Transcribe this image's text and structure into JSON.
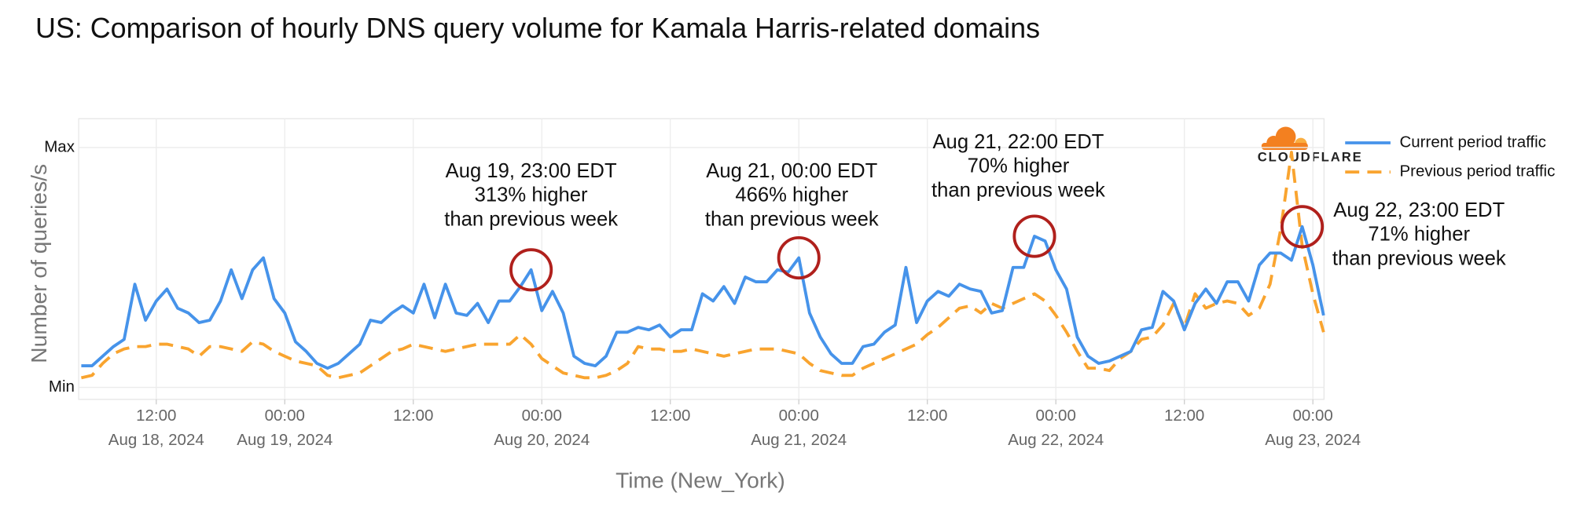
{
  "chart_data": {
    "type": "line",
    "title": "US: Comparison of hourly DNS query volume for Kamala Harris-related domains",
    "y_label": "Number of queries/s",
    "x_label": "Time (New_York)",
    "logo_text": "CLOUDFLARE",
    "grid": true,
    "legend": "right",
    "ylim": [
      -5,
      112
    ],
    "yticks": [
      {
        "value": 0,
        "label": "Min"
      },
      {
        "value": 100,
        "label": "Max"
      }
    ],
    "xlim": [
      "2024-08-18T05:00",
      "2024-08-23T01:00"
    ],
    "xticks": [
      {
        "value": "2024-08-18T12:00",
        "label": "12:00",
        "date": "Aug 18, 2024"
      },
      {
        "value": "2024-08-19T00:00",
        "label": "00:00",
        "date": "Aug 19, 2024"
      },
      {
        "value": "2024-08-19T12:00",
        "label": "12:00"
      },
      {
        "value": "2024-08-20T00:00",
        "label": "00:00",
        "date": "Aug 20, 2024"
      },
      {
        "value": "2024-08-20T12:00",
        "label": "12:00"
      },
      {
        "value": "2024-08-21T00:00",
        "label": "00:00",
        "date": "Aug 21, 2024"
      },
      {
        "value": "2024-08-21T12:00",
        "label": "12:00"
      },
      {
        "value": "2024-08-22T00:00",
        "label": "00:00",
        "date": "Aug 22, 2024"
      },
      {
        "value": "2024-08-22T12:00",
        "label": "12:00"
      },
      {
        "value": "2024-08-23T00:00",
        "label": "00:00",
        "date": "Aug 23, 2024"
      }
    ],
    "x": [
      "2024-08-18T05:00",
      "2024-08-18T06:00",
      "2024-08-18T07:00",
      "2024-08-18T08:00",
      "2024-08-18T09:00",
      "2024-08-18T10:00",
      "2024-08-18T11:00",
      "2024-08-18T12:00",
      "2024-08-18T13:00",
      "2024-08-18T14:00",
      "2024-08-18T15:00",
      "2024-08-18T16:00",
      "2024-08-18T17:00",
      "2024-08-18T18:00",
      "2024-08-18T19:00",
      "2024-08-18T20:00",
      "2024-08-18T21:00",
      "2024-08-18T22:00",
      "2024-08-18T23:00",
      "2024-08-19T00:00",
      "2024-08-19T01:00",
      "2024-08-19T02:00",
      "2024-08-19T03:00",
      "2024-08-19T04:00",
      "2024-08-19T05:00",
      "2024-08-19T06:00",
      "2024-08-19T07:00",
      "2024-08-19T08:00",
      "2024-08-19T09:00",
      "2024-08-19T10:00",
      "2024-08-19T11:00",
      "2024-08-19T12:00",
      "2024-08-19T13:00",
      "2024-08-19T14:00",
      "2024-08-19T15:00",
      "2024-08-19T16:00",
      "2024-08-19T17:00",
      "2024-08-19T18:00",
      "2024-08-19T19:00",
      "2024-08-19T20:00",
      "2024-08-19T21:00",
      "2024-08-19T22:00",
      "2024-08-19T23:00",
      "2024-08-20T00:00",
      "2024-08-20T01:00",
      "2024-08-20T02:00",
      "2024-08-20T03:00",
      "2024-08-20T04:00",
      "2024-08-20T05:00",
      "2024-08-20T06:00",
      "2024-08-20T07:00",
      "2024-08-20T08:00",
      "2024-08-20T09:00",
      "2024-08-20T10:00",
      "2024-08-20T11:00",
      "2024-08-20T12:00",
      "2024-08-20T13:00",
      "2024-08-20T14:00",
      "2024-08-20T15:00",
      "2024-08-20T16:00",
      "2024-08-20T17:00",
      "2024-08-20T18:00",
      "2024-08-20T19:00",
      "2024-08-20T20:00",
      "2024-08-20T21:00",
      "2024-08-20T22:00",
      "2024-08-20T23:00",
      "2024-08-21T00:00",
      "2024-08-21T01:00",
      "2024-08-21T02:00",
      "2024-08-21T03:00",
      "2024-08-21T04:00",
      "2024-08-21T05:00",
      "2024-08-21T06:00",
      "2024-08-21T07:00",
      "2024-08-21T08:00",
      "2024-08-21T09:00",
      "2024-08-21T10:00",
      "2024-08-21T11:00",
      "2024-08-21T12:00",
      "2024-08-21T13:00",
      "2024-08-21T14:00",
      "2024-08-21T15:00",
      "2024-08-21T16:00",
      "2024-08-21T17:00",
      "2024-08-21T18:00",
      "2024-08-21T19:00",
      "2024-08-21T20:00",
      "2024-08-21T21:00",
      "2024-08-21T22:00",
      "2024-08-21T23:00",
      "2024-08-22T00:00",
      "2024-08-22T01:00",
      "2024-08-22T02:00",
      "2024-08-22T03:00",
      "2024-08-22T04:00",
      "2024-08-22T05:00",
      "2024-08-22T06:00",
      "2024-08-22T07:00",
      "2024-08-22T08:00",
      "2024-08-22T09:00",
      "2024-08-22T10:00",
      "2024-08-22T11:00",
      "2024-08-22T12:00",
      "2024-08-22T13:00",
      "2024-08-22T14:00",
      "2024-08-22T15:00",
      "2024-08-22T16:00",
      "2024-08-22T17:00",
      "2024-08-22T18:00",
      "2024-08-22T19:00",
      "2024-08-22T20:00",
      "2024-08-22T21:00",
      "2024-08-22T22:00",
      "2024-08-22T23:00",
      "2024-08-23T00:00",
      "2024-08-23T01:00"
    ],
    "series": [
      {
        "name": "Current period traffic",
        "color": "#4693ea",
        "dash": false,
        "values": [
          9,
          9,
          13,
          17,
          20,
          43,
          28,
          36,
          41,
          33,
          31,
          27,
          28,
          36,
          49,
          37,
          49,
          54,
          37,
          31,
          19,
          15,
          10,
          8,
          10,
          14,
          18,
          28,
          27,
          31,
          34,
          31,
          43,
          29,
          43,
          31,
          30,
          35,
          27,
          36,
          36,
          42,
          49,
          32,
          40,
          31,
          13,
          10,
          9,
          13,
          23,
          23,
          25,
          24,
          26,
          21,
          24,
          24,
          39,
          36,
          42,
          35,
          46,
          44,
          44,
          49,
          48,
          54,
          31,
          21,
          14,
          10,
          10,
          17,
          18,
          23,
          26,
          50,
          27,
          36,
          40,
          38,
          43,
          41,
          40,
          31,
          32,
          50,
          50,
          63,
          61,
          49,
          41,
          21,
          13,
          10,
          11,
          13,
          15,
          24,
          25,
          40,
          36,
          24,
          35,
          41,
          35,
          44,
          44,
          36,
          51,
          56,
          56,
          53,
          67,
          51,
          30
        ]
      },
      {
        "name": "Previous period traffic",
        "color": "#f9a42f",
        "dash": true,
        "values": [
          4,
          5,
          10,
          14,
          16,
          17,
          17,
          18,
          18,
          17,
          16,
          13,
          17,
          17,
          16,
          15,
          19,
          18,
          15,
          13,
          11,
          10,
          9,
          5,
          4,
          5,
          6,
          9,
          12,
          15,
          16,
          18,
          17,
          16,
          15,
          16,
          17,
          18,
          18,
          18,
          18,
          22,
          18,
          12,
          9,
          6,
          5,
          4,
          4,
          5,
          7,
          10,
          17,
          16,
          16,
          15,
          15,
          16,
          15,
          14,
          13,
          14,
          15,
          16,
          16,
          16,
          15,
          14,
          10,
          7,
          6,
          5,
          5,
          8,
          10,
          12,
          14,
          16,
          18,
          22,
          25,
          29,
          33,
          34,
          31,
          35,
          33,
          35,
          37,
          39,
          36,
          30,
          23,
          15,
          8,
          8,
          7,
          12,
          15,
          20,
          21,
          26,
          35,
          25,
          39,
          33,
          35,
          36,
          35,
          30,
          33,
          43,
          66,
          98,
          59,
          39,
          23
        ]
      }
    ],
    "annotations": [
      {
        "x": "2024-08-19T23:00",
        "lines": [
          "Aug 19, 23:00 EDT",
          "313% higher",
          "than previous week"
        ]
      },
      {
        "x": "2024-08-21T00:00",
        "lines": [
          "Aug 21, 00:00 EDT",
          "466% higher",
          "than previous week"
        ]
      },
      {
        "x": "2024-08-21T22:00",
        "lines": [
          "Aug 21, 22:00 EDT",
          "70% higher",
          "than previous week"
        ]
      },
      {
        "x": "2024-08-22T23:00",
        "lines": [
          "Aug 22, 23:00 EDT",
          "71% higher",
          "than previous week"
        ]
      }
    ]
  }
}
